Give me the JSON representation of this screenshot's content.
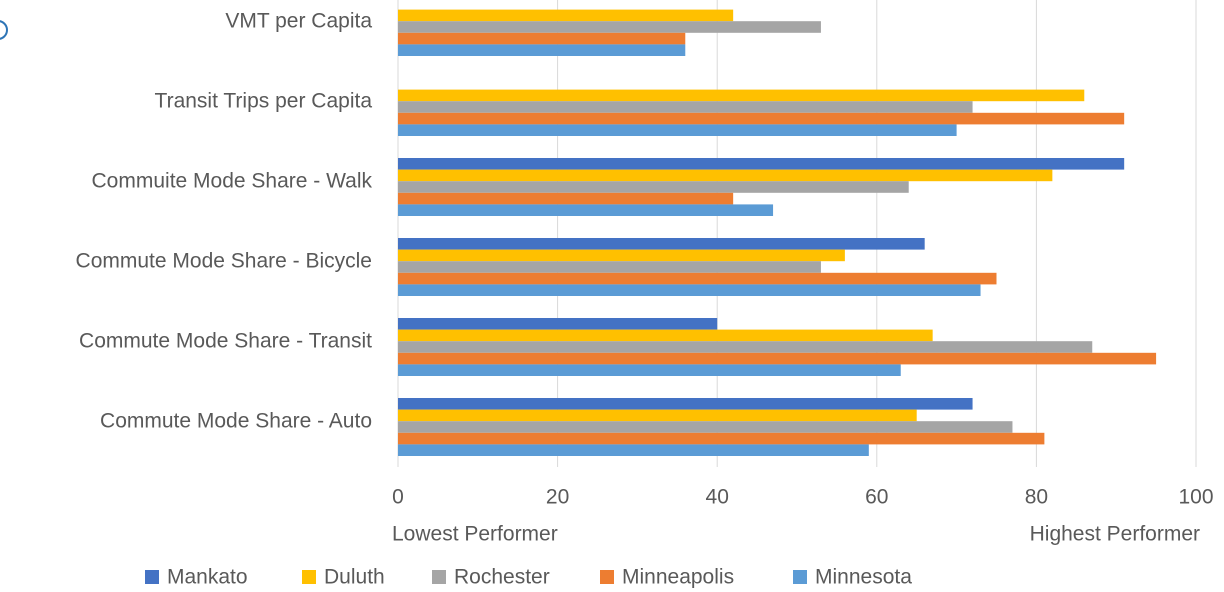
{
  "chart_data": {
    "type": "bar",
    "orientation": "horizontal",
    "categories": [
      "VMT per Capita",
      "Transit Trips per Capita",
      "Commuite Mode Share - Walk",
      "Commute Mode Share - Bicycle",
      "Commute Mode Share - Transit",
      "Commute Mode Share - Auto"
    ],
    "series": [
      {
        "name": "Mankato",
        "color": "#4472c4",
        "values": [
          null,
          null,
          91,
          66,
          40,
          72
        ]
      },
      {
        "name": "Duluth",
        "color": "#ffc000",
        "values": [
          42,
          86,
          82,
          56,
          67,
          65
        ]
      },
      {
        "name": "Rochester",
        "color": "#a5a5a5",
        "values": [
          53,
          72,
          64,
          53,
          87,
          77
        ]
      },
      {
        "name": "Minneapolis",
        "color": "#ed7d31",
        "values": [
          36,
          91,
          42,
          75,
          95,
          81
        ]
      },
      {
        "name": "Minnesota",
        "color": "#5b9bd5",
        "values": [
          36,
          70,
          47,
          73,
          63,
          59
        ]
      }
    ],
    "xlim": [
      0,
      100
    ],
    "xticks": [
      0,
      20,
      40,
      60,
      80,
      100
    ],
    "grid": true,
    "annotations": [
      "Lowest Performer",
      "Highest Performer"
    ],
    "legend": "bottom"
  }
}
